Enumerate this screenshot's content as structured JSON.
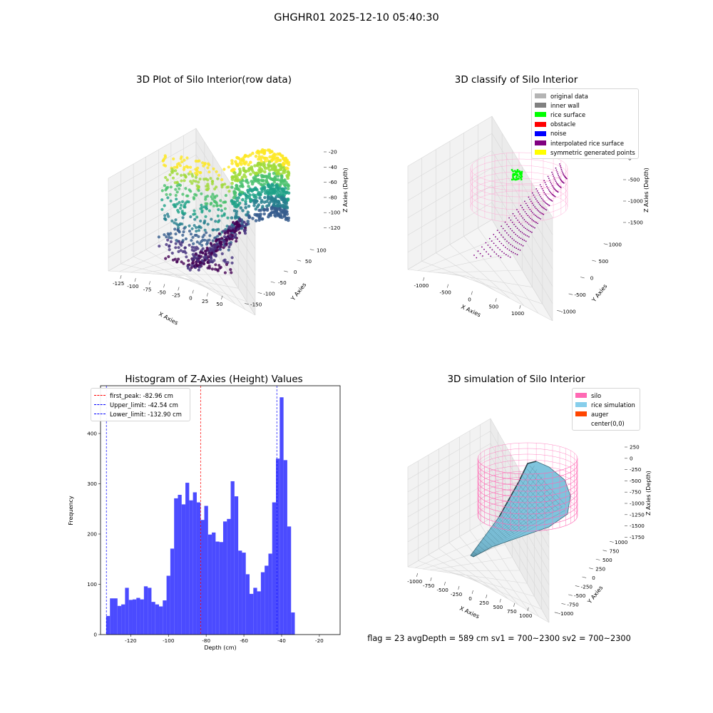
{
  "figure": {
    "suptitle": "GHGHR01 2025-12-10 05:40:30",
    "status_line": "flag = 23  avgDepth = 589 cm  sv1 = 700~2300  sv2 = 700~2300"
  },
  "chart_data": [
    {
      "type": "scatter",
      "title": "3D Plot of Silo Interior(row data)",
      "xlabel": "X Axies",
      "ylabel": "Y Axies",
      "zlabel": "Z Axies (Depth)",
      "x_ticks": [
        "-125",
        "-100",
        "-75",
        "-50",
        "-25",
        "0",
        "25",
        "50"
      ],
      "y_ticks": [
        "100",
        "50",
        "0",
        "-50",
        "-100",
        "-150"
      ],
      "z_ticks": [
        "-20",
        "-40",
        "-60",
        "-80",
        "-100",
        "-120"
      ],
      "xlim": [
        -135,
        60
      ],
      "ylim": [
        -170,
        120
      ],
      "zlim": [
        -135,
        -12
      ],
      "colormap": "viridis",
      "grid": true
    },
    {
      "type": "scatter",
      "title": "3D classify of Silo Interior",
      "xlabel": "X Axies",
      "ylabel": "Y Axies",
      "zlabel": "Z Axies (Depth)",
      "x_ticks": [
        "-1000",
        "-500",
        "0",
        "500",
        "1000"
      ],
      "y_ticks": [
        "1000",
        "500",
        "0",
        "-500",
        "-1000"
      ],
      "z_ticks": [
        "0",
        "-500",
        "-1000",
        "-1500"
      ],
      "legend": [
        {
          "label": "original data",
          "color": "#b4b4b4"
        },
        {
          "label": "inner wall",
          "color": "#808080"
        },
        {
          "label": "rice surface",
          "color": "#00ff00"
        },
        {
          "label": "obstacle",
          "color": "#ff0000"
        },
        {
          "label": "noise",
          "color": "#0000ff"
        },
        {
          "label": "interpolated rice surface",
          "color": "#800080"
        },
        {
          "label": "symmetric generated points",
          "color": "#ffff00"
        }
      ],
      "legend_position": "top-right",
      "grid": true
    },
    {
      "type": "bar",
      "title": "Histogram of Z-Axies (Height) Values",
      "xlabel": "Depth (cm)",
      "ylabel": "Frequency",
      "xlim": [
        -136,
        -9
      ],
      "ylim": [
        0,
        495
      ],
      "x_ticks": [
        -120,
        -100,
        -80,
        -60,
        -40,
        -20
      ],
      "y_ticks": [
        0,
        100,
        200,
        300,
        400
      ],
      "bin_start": -133,
      "bin_width": 2,
      "values": [
        37,
        72,
        72,
        57,
        60,
        93,
        69,
        70,
        73,
        70,
        96,
        93,
        65,
        60,
        56,
        68,
        117,
        171,
        271,
        278,
        259,
        302,
        267,
        283,
        263,
        228,
        256,
        199,
        203,
        185,
        184,
        225,
        230,
        305,
        275,
        167,
        163,
        120,
        81,
        93,
        86,
        124,
        137,
        161,
        263,
        350,
        472,
        347,
        215,
        44
      ],
      "bar_color": "#4b4bff",
      "vlines": [
        {
          "label": "first_peak: -82.96 cm",
          "x": -82.96,
          "color": "#ff0000"
        },
        {
          "label": "Upper_limit: -42.54 cm",
          "x": -42.54,
          "color": "#0000ff"
        },
        {
          "label": "Lower_limit: -132.90 cm",
          "x": -132.9,
          "color": "#0000ff"
        }
      ],
      "legend_position": "top-left",
      "grid": false
    },
    {
      "type": "area",
      "title": "3D simulation of Silo Interior",
      "xlabel": "X Axies",
      "ylabel": "Y Axies",
      "zlabel": "Z Axies (Depth)",
      "x_ticks": [
        "-1000",
        "-750",
        "-500",
        "-250",
        "0",
        "250",
        "500",
        "750",
        "1000"
      ],
      "y_ticks": [
        "1000",
        "750",
        "500",
        "250",
        "0",
        "-250",
        "-500",
        "-750",
        "-1000"
      ],
      "z_ticks": [
        "250",
        "0",
        "-250",
        "-500",
        "-750",
        "-1000",
        "-1250",
        "-1500",
        "-1750"
      ],
      "legend": [
        {
          "label": "silo",
          "color": "#ff69b4"
        },
        {
          "label": "rice simulation",
          "color": "#87ceeb"
        },
        {
          "label": "auger",
          "color": "#ff4500"
        },
        {
          "label": "center(0,0)",
          "color": ""
        }
      ],
      "legend_position": "top-right",
      "grid": true
    }
  ]
}
